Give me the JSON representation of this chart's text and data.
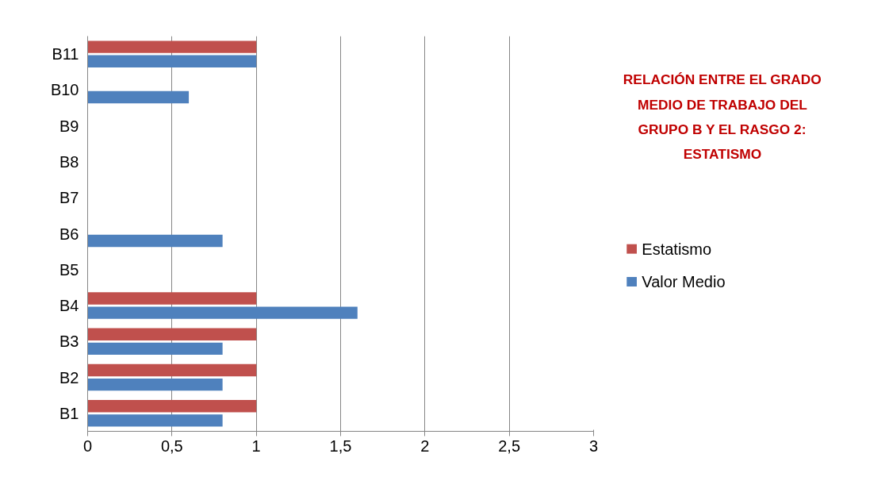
{
  "chart_data": {
    "type": "bar",
    "orientation": "horizontal",
    "title": "RELACIÓN ENTRE EL GRADO MEDIO DE TRABAJO DEL GRUPO B Y EL RASGO 2: ESTATISMO",
    "categories": [
      "B11",
      "B10",
      "B9",
      "B8",
      "B7",
      "B6",
      "B5",
      "B4",
      "B3",
      "B2",
      "B1"
    ],
    "series": [
      {
        "name": "Valor Medio",
        "color": "#4f81bd",
        "values": [
          1,
          0.6,
          null,
          null,
          null,
          0.8,
          null,
          1.6,
          0.8,
          0.8,
          0.8
        ]
      },
      {
        "name": "Estatismo",
        "color": "#c0504d",
        "values": [
          1,
          null,
          null,
          null,
          null,
          null,
          null,
          1,
          1,
          1,
          1
        ]
      }
    ],
    "xlim": [
      0,
      3
    ],
    "xticks": [
      0,
      {
        "value": 0.5,
        "label": "0,5"
      },
      1,
      {
        "value": 1.5,
        "label": "1,5"
      },
      2,
      {
        "value": 2.5,
        "label": "2,5"
      },
      3
    ],
    "grid": "x",
    "legend": "right"
  }
}
